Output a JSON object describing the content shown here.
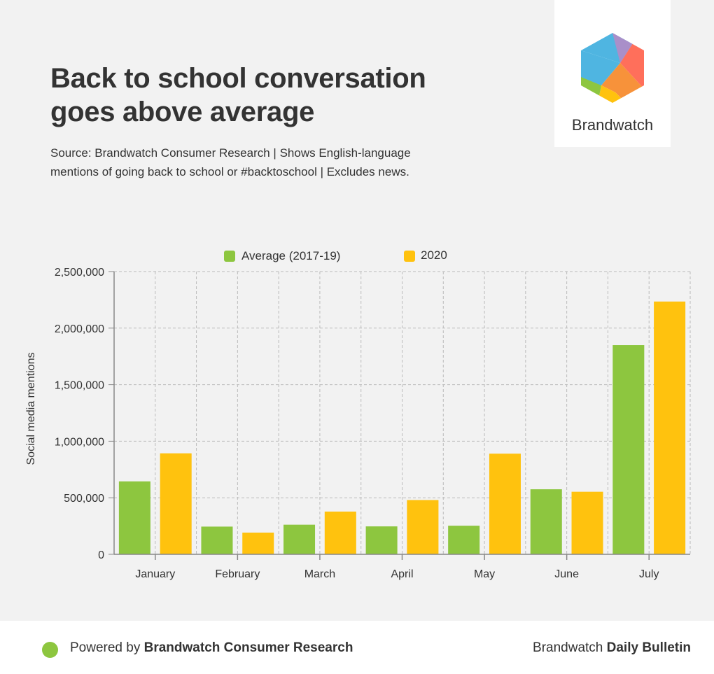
{
  "header": {
    "title": "Back to school conversation goes above average",
    "subtitle": "Source: Brandwatch Consumer Research | Shows English-language mentions of going back to school or #backtoschool | Excludes news."
  },
  "logo": {
    "text": "Brandwatch",
    "icon": "brandwatch-hexagon-icon"
  },
  "colors": {
    "average": "#8dc63f",
    "y2020": "#ffc20e",
    "grid": "#bbbbbb",
    "axis": "#888888",
    "text": "#333333"
  },
  "chart_data": {
    "type": "bar",
    "title": "Back to school conversation goes above average",
    "xlabel": "",
    "ylabel": "Social media mentions",
    "categories": [
      "January",
      "February",
      "March",
      "April",
      "May",
      "June",
      "July"
    ],
    "series": [
      {
        "name": "Average (2017-19)",
        "values": [
          645000,
          245000,
          262000,
          247000,
          253000,
          575000,
          1850000
        ]
      },
      {
        "name": "2020",
        "values": [
          893000,
          192000,
          378000,
          480000,
          890000,
          553000,
          2235000
        ]
      }
    ],
    "ylim": [
      0,
      2500000
    ],
    "yticks": [
      0,
      500000,
      1000000,
      1500000,
      2000000,
      2500000
    ],
    "ytick_labels": [
      "0",
      "500,000",
      "1,000,000",
      "1,500,000",
      "2,000,000",
      "2,500,000"
    ],
    "grid": true,
    "legend": "top-center"
  },
  "footer": {
    "powered_prefix": "Powered by ",
    "powered_brand": "Brandwatch Consumer Research",
    "right_prefix": "Brandwatch ",
    "right_bold": "Daily Bulletin"
  }
}
